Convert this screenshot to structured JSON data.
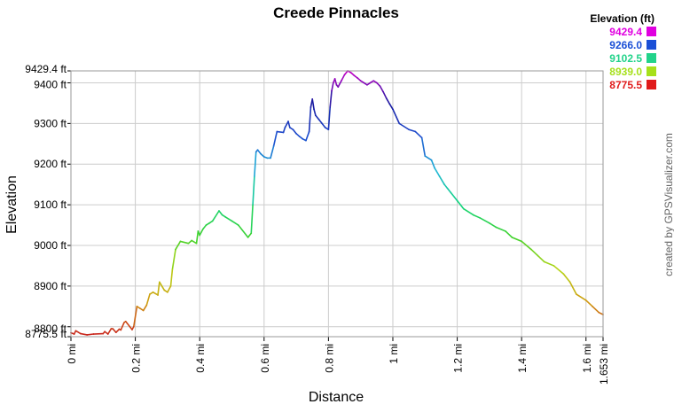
{
  "chart_data": {
    "type": "line",
    "title": "Creede Pinnacles",
    "xlabel": "Distance",
    "ylabel": "Elevation",
    "xlim": [
      0,
      1.653
    ],
    "ylim": [
      8775.5,
      9429.4
    ],
    "x_ticks": [
      0,
      0.2,
      0.4,
      0.6,
      0.8,
      1.0,
      1.2,
      1.4,
      1.6,
      1.653
    ],
    "x_tick_labels": [
      "0 mi",
      "0.2 mi",
      "0.4 mi",
      "0.6 mi",
      "0.8 mi",
      "1 mi",
      "1.2 mi",
      "1.4 mi",
      "1.6 mi",
      "1.653 mi"
    ],
    "y_ticks": [
      8775.5,
      8800,
      8900,
      9000,
      9100,
      9200,
      9300,
      9400,
      9429.4
    ],
    "y_tick_labels": [
      "8775.5 ft",
      "8800 ft",
      "8900 ft",
      "9000 ft",
      "9100 ft",
      "9200 ft",
      "9300 ft",
      "9400 ft",
      "9429.4 ft"
    ],
    "grid": true,
    "legend_title": "Elevation (ft)",
    "legend_placement": "top-right",
    "legend": [
      {
        "label": "9429.4",
        "color": "#e000e0"
      },
      {
        "label": "9266.0",
        "color": "#1a4fd6"
      },
      {
        "label": "9102.5",
        "color": "#22d38a"
      },
      {
        "label": "8939.0",
        "color": "#a6e01a"
      },
      {
        "label": "8775.5",
        "color": "#e01b1b"
      }
    ],
    "color_scale": [
      {
        "at": 8775.5,
        "color": "#c81e1e"
      },
      {
        "at": 8860,
        "color": "#d09a10"
      },
      {
        "at": 8939.0,
        "color": "#b7d416"
      },
      {
        "at": 9020,
        "color": "#3fd22a"
      },
      {
        "at": 9102.5,
        "color": "#12d47f"
      },
      {
        "at": 9185,
        "color": "#20b6d8"
      },
      {
        "at": 9266.0,
        "color": "#1d4fd0"
      },
      {
        "at": 9350,
        "color": "#1a1aa0"
      },
      {
        "at": 9429.4,
        "color": "#c800c8"
      }
    ],
    "series": [
      {
        "x": [
          0,
          0.01,
          0.015,
          0.03,
          0.05,
          0.07,
          0.1,
          0.105,
          0.115,
          0.125,
          0.13,
          0.14,
          0.15,
          0.155,
          0.165,
          0.17,
          0.19,
          0.195,
          0.205,
          0.215,
          0.225,
          0.235,
          0.245,
          0.255,
          0.27,
          0.275,
          0.29,
          0.3,
          0.31,
          0.315,
          0.325,
          0.34,
          0.365,
          0.375,
          0.39,
          0.395,
          0.4,
          0.41,
          0.42,
          0.43,
          0.44,
          0.46,
          0.47,
          0.48,
          0.5,
          0.52,
          0.55,
          0.56,
          0.565,
          0.57,
          0.575,
          0.58,
          0.59,
          0.6,
          0.61,
          0.62,
          0.63,
          0.64,
          0.66,
          0.665,
          0.675,
          0.68,
          0.69,
          0.7,
          0.71,
          0.72,
          0.73,
          0.74,
          0.745,
          0.75,
          0.755,
          0.76,
          0.77,
          0.78,
          0.79,
          0.8,
          0.805,
          0.81,
          0.815,
          0.82,
          0.825,
          0.83,
          0.84,
          0.85,
          0.86,
          0.87,
          0.88,
          0.89,
          0.9,
          0.91,
          0.92,
          0.93,
          0.94,
          0.95,
          0.96,
          0.97,
          0.98,
          0.99,
          1.0,
          1.02,
          1.05,
          1.07,
          1.09,
          1.1,
          1.12,
          1.13,
          1.145,
          1.16,
          1.17,
          1.18,
          1.2,
          1.22,
          1.25,
          1.27,
          1.3,
          1.32,
          1.35,
          1.37,
          1.4,
          1.43,
          1.45,
          1.47,
          1.5,
          1.53,
          1.55,
          1.57,
          1.6,
          1.62,
          1.64,
          1.653
        ],
        "values": [
          8785,
          8782,
          8790,
          8783,
          8780,
          8782,
          8783,
          8788,
          8782,
          8795,
          8795,
          8786,
          8794,
          8792,
          8810,
          8813,
          8793,
          8800,
          8850,
          8845,
          8840,
          8853,
          8880,
          8885,
          8878,
          8910,
          8890,
          8885,
          8900,
          8940,
          8990,
          9010,
          9005,
          9012,
          9005,
          9035,
          9025,
          9040,
          9050,
          9055,
          9060,
          9085,
          9075,
          9070,
          9060,
          9050,
          9020,
          9030,
          9100,
          9170,
          9230,
          9235,
          9225,
          9218,
          9215,
          9215,
          9245,
          9280,
          9278,
          9290,
          9305,
          9290,
          9285,
          9275,
          9268,
          9262,
          9258,
          9280,
          9340,
          9360,
          9335,
          9320,
          9310,
          9300,
          9290,
          9285,
          9340,
          9380,
          9400,
          9410,
          9395,
          9390,
          9405,
          9420,
          9430,
          9425,
          9418,
          9412,
          9405,
          9400,
          9395,
          9400,
          9405,
          9400,
          9392,
          9378,
          9362,
          9348,
          9335,
          9300,
          9285,
          9280,
          9265,
          9220,
          9210,
          9190,
          9170,
          9150,
          9140,
          9130,
          9110,
          9090,
          9075,
          9068,
          9055,
          9045,
          9035,
          9020,
          9010,
          8990,
          8975,
          8960,
          8950,
          8930,
          8910,
          8880,
          8865,
          8850,
          8835,
          8830
        ]
      }
    ],
    "watermark": "created by GPSVisualizer.com"
  }
}
